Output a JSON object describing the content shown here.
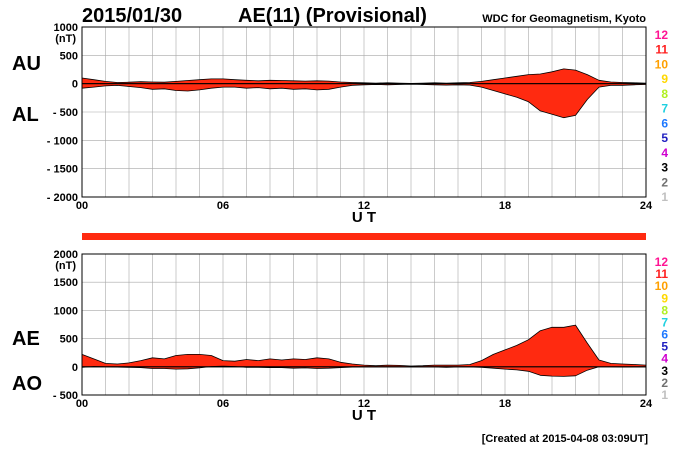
{
  "header": {
    "date": "2015/01/30",
    "title": "AE(11) (Provisional)",
    "source": "WDC for Geomagnetism, Kyoto"
  },
  "footer": "[Created at 2015-04-08 03:09UT]",
  "colors": {
    "fill": "#ff2a10",
    "grid": "#a8a8a8",
    "frame": "#000000",
    "coverage_bar": "#ff2a10"
  },
  "legend": [
    {
      "label": "12",
      "color": "#ff1493"
    },
    {
      "label": "11",
      "color": "#ff2020"
    },
    {
      "label": "10",
      "color": "#ffa000"
    },
    {
      "label": "9",
      "color": "#ffd800"
    },
    {
      "label": "8",
      "color": "#b0f020"
    },
    {
      "label": "7",
      "color": "#20d0e0"
    },
    {
      "label": "6",
      "color": "#1e78ff"
    },
    {
      "label": "5",
      "color": "#2020c0"
    },
    {
      "label": "4",
      "color": "#d000d0"
    },
    {
      "label": "3",
      "color": "#000000"
    },
    {
      "label": "2",
      "color": "#707070"
    },
    {
      "label": "1",
      "color": "#c0c0c0"
    }
  ],
  "chart_data": [
    {
      "type": "area",
      "label_upper": "AU",
      "label_lower": "AL",
      "unit": "(nT)",
      "xlabel": "U T",
      "xlim": [
        0,
        24
      ],
      "xticks": [
        "00",
        "06",
        "12",
        "18",
        "24"
      ],
      "ylim": [
        -2000,
        1000
      ],
      "yticks": [
        "1000",
        "500",
        "0",
        "- 500",
        "- 1000",
        "- 1500",
        "- 2000"
      ],
      "grid": true,
      "series": [
        {
          "name": "AU",
          "x": [
            0,
            0.5,
            1,
            1.5,
            2,
            2.5,
            3,
            3.5,
            4,
            4.5,
            5,
            5.5,
            6,
            6.5,
            7,
            7.5,
            8,
            8.5,
            9,
            9.5,
            10,
            10.5,
            11,
            11.5,
            12,
            12.5,
            13,
            13.5,
            14,
            14.5,
            15,
            15.5,
            16,
            16.5,
            17,
            17.5,
            18,
            18.5,
            19,
            19.5,
            20,
            20.5,
            21,
            21.5,
            22,
            22.5,
            23,
            23.5,
            24
          ],
          "values": [
            100,
            70,
            40,
            20,
            25,
            35,
            30,
            25,
            40,
            55,
            70,
            85,
            85,
            70,
            60,
            50,
            60,
            55,
            50,
            45,
            50,
            45,
            30,
            20,
            15,
            10,
            15,
            10,
            5,
            10,
            15,
            10,
            15,
            20,
            40,
            70,
            100,
            130,
            160,
            170,
            210,
            260,
            240,
            160,
            60,
            30,
            20,
            15,
            10
          ]
        },
        {
          "name": "AL",
          "x": [
            0,
            0.5,
            1,
            1.5,
            2,
            2.5,
            3,
            3.5,
            4,
            4.5,
            5,
            5.5,
            6,
            6.5,
            7,
            7.5,
            8,
            8.5,
            9,
            9.5,
            10,
            10.5,
            11,
            11.5,
            12,
            12.5,
            13,
            13.5,
            14,
            14.5,
            15,
            15.5,
            16,
            16.5,
            17,
            17.5,
            18,
            18.5,
            19,
            19.5,
            20,
            20.5,
            21,
            21.5,
            22,
            22.5,
            23,
            23.5,
            24
          ],
          "values": [
            -80,
            -60,
            -40,
            -30,
            -50,
            -70,
            -100,
            -90,
            -120,
            -130,
            -110,
            -80,
            -60,
            -60,
            -80,
            -70,
            -90,
            -80,
            -100,
            -90,
            -110,
            -100,
            -60,
            -30,
            -20,
            -15,
            -20,
            -15,
            -10,
            -15,
            -20,
            -25,
            -20,
            -25,
            -60,
            -120,
            -180,
            -240,
            -320,
            -480,
            -540,
            -600,
            -560,
            -280,
            -60,
            -30,
            -30,
            -20,
            -15
          ]
        }
      ]
    },
    {
      "type": "area",
      "label_upper": "AE",
      "label_lower": "AO",
      "unit": "(nT)",
      "xlabel": "U T",
      "xlim": [
        0,
        24
      ],
      "xticks": [
        "00",
        "06",
        "12",
        "18",
        "24"
      ],
      "ylim": [
        -500,
        2000
      ],
      "yticks": [
        "2000",
        "1500",
        "1000",
        "500",
        "0",
        "- 500"
      ],
      "grid": true,
      "series": [
        {
          "name": "AE",
          "x": [
            0,
            0.5,
            1,
            1.5,
            2,
            2.5,
            3,
            3.5,
            4,
            4.5,
            5,
            5.5,
            6,
            6.5,
            7,
            7.5,
            8,
            8.5,
            9,
            9.5,
            10,
            10.5,
            11,
            11.5,
            12,
            12.5,
            13,
            13.5,
            14,
            14.5,
            15,
            15.5,
            16,
            16.5,
            17,
            17.5,
            18,
            18.5,
            19,
            19.5,
            20,
            20.5,
            21,
            21.5,
            22,
            22.5,
            23,
            23.5,
            24
          ],
          "values": [
            220,
            140,
            60,
            50,
            70,
            110,
            160,
            140,
            200,
            220,
            220,
            200,
            110,
            100,
            130,
            110,
            140,
            120,
            140,
            130,
            160,
            140,
            80,
            50,
            30,
            20,
            30,
            25,
            15,
            20,
            30,
            30,
            30,
            40,
            110,
            220,
            300,
            380,
            480,
            640,
            700,
            700,
            740,
            420,
            120,
            60,
            50,
            40,
            30
          ]
        },
        {
          "name": "AO",
          "x": [
            0,
            0.5,
            1,
            1.5,
            2,
            2.5,
            3,
            3.5,
            4,
            4.5,
            5,
            5.5,
            6,
            6.5,
            7,
            7.5,
            8,
            8.5,
            9,
            9.5,
            10,
            10.5,
            11,
            11.5,
            12,
            12.5,
            13,
            13.5,
            14,
            14.5,
            15,
            15.5,
            16,
            16.5,
            17,
            17.5,
            18,
            18.5,
            19,
            19.5,
            20,
            20.5,
            21,
            21.5,
            22,
            22.5,
            23,
            23.5,
            24
          ],
          "values": [
            -10,
            5,
            0,
            -5,
            -10,
            -15,
            -30,
            -30,
            -40,
            -35,
            -20,
            5,
            10,
            5,
            -10,
            -10,
            -15,
            -15,
            -25,
            -20,
            -30,
            -25,
            -15,
            -5,
            -3,
            -3,
            -3,
            -3,
            -3,
            -3,
            -3,
            -8,
            -3,
            -3,
            -10,
            -25,
            -40,
            -55,
            -80,
            -150,
            -165,
            -170,
            -160,
            -60,
            0,
            0,
            -5,
            -3,
            -3
          ]
        }
      ]
    }
  ]
}
